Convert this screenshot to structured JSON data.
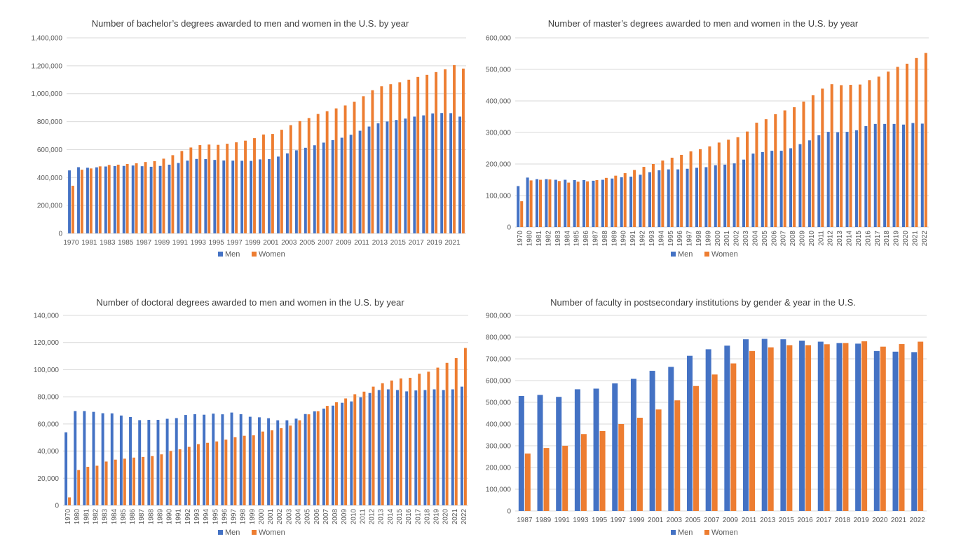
{
  "colors": {
    "men": "#4472C4",
    "women": "#ED7D31"
  },
  "chart_data": [
    {
      "type": "bar",
      "title": "Number of bachelor’s degrees awarded to men and women in the U.S. by year",
      "categories": [
        "1970",
        "1980",
        "1981",
        "1982",
        "1983",
        "1984",
        "1985",
        "1986",
        "1987",
        "1988",
        "1989",
        "1990",
        "1991",
        "1992",
        "1993",
        "1994",
        "1995",
        "1996",
        "1997",
        "1998",
        "1999",
        "2000",
        "2001",
        "2002",
        "2003",
        "2004",
        "2005",
        "2006",
        "2007",
        "2008",
        "2009",
        "2010",
        "2011",
        "2012",
        "2013",
        "2014",
        "2015",
        "2016",
        "2017",
        "2018",
        "2019",
        "2020",
        "2021",
        "2022"
      ],
      "series": [
        {
          "name": "Men",
          "values": [
            451000,
            474000,
            470000,
            473000,
            479000,
            482000,
            483000,
            486000,
            481000,
            477000,
            483000,
            492000,
            504000,
            521000,
            533000,
            532000,
            526000,
            522000,
            521000,
            520000,
            519000,
            530000,
            532000,
            550000,
            573000,
            595000,
            613000,
            631000,
            650000,
            668000,
            685000,
            706000,
            735000,
            765000,
            788000,
            801000,
            812000,
            822000,
            836000,
            845000,
            859000,
            862000,
            861000,
            836000
          ]
        },
        {
          "name": "Women",
          "values": [
            341000,
            456000,
            465000,
            480000,
            490000,
            492000,
            497000,
            502000,
            511000,
            517000,
            535000,
            560000,
            590000,
            615000,
            632000,
            636000,
            634000,
            642000,
            652000,
            664000,
            682000,
            708000,
            712000,
            742000,
            775000,
            804000,
            826000,
            855000,
            875000,
            895000,
            916000,
            943000,
            982000,
            1025000,
            1053000,
            1068000,
            1082000,
            1100000,
            1120000,
            1135000,
            1155000,
            1175000,
            1205000,
            1180000
          ]
        }
      ],
      "ylim": [
        0,
        1400000
      ],
      "ytick_step": 200000,
      "xlabel_every": 2,
      "grid": true,
      "legend": "bottom"
    },
    {
      "type": "bar",
      "title": "Number of master’s degrees awarded to men and women in the U.S. by year",
      "categories": [
        "1970",
        "1980",
        "1981",
        "1982",
        "1983",
        "1984",
        "1985",
        "1986",
        "1987",
        "1988",
        "1989",
        "1990",
        "1991",
        "1992",
        "1993",
        "1994",
        "1995",
        "1996",
        "1997",
        "1998",
        "1999",
        "2000",
        "2001",
        "2002",
        "2003",
        "2004",
        "2005",
        "2006",
        "2007",
        "2008",
        "2009",
        "2010",
        "2011",
        "2012",
        "2013",
        "2014",
        "2015",
        "2016",
        "2017",
        "2018",
        "2019",
        "2020",
        "2021",
        "2022"
      ],
      "series": [
        {
          "name": "Men",
          "values": [
            130000,
            157000,
            152000,
            152000,
            150000,
            150000,
            149000,
            149000,
            147000,
            150000,
            154000,
            158000,
            160000,
            166000,
            174000,
            180000,
            183000,
            183000,
            185000,
            188000,
            190000,
            196000,
            198000,
            202000,
            214000,
            233000,
            238000,
            242000,
            242000,
            250000,
            263000,
            275000,
            291000,
            302000,
            301000,
            302000,
            307000,
            320000,
            327000,
            327000,
            327000,
            325000,
            330000,
            328000
          ]
        },
        {
          "name": "Women",
          "values": [
            82000,
            148000,
            150000,
            151000,
            146000,
            141000,
            144000,
            145000,
            149000,
            156000,
            163000,
            171000,
            181000,
            191000,
            200000,
            211000,
            220000,
            229000,
            240000,
            247000,
            256000,
            268000,
            277000,
            285000,
            303000,
            331000,
            342000,
            358000,
            370000,
            380000,
            398000,
            418000,
            439000,
            453000,
            450000,
            451000,
            452000,
            466000,
            477000,
            493000,
            508000,
            518000,
            536000,
            552000
          ]
        }
      ],
      "ylim": [
        0,
        600000
      ],
      "ytick_step": 100000,
      "xlabel_every": 1,
      "grid": true,
      "legend": "bottom"
    },
    {
      "type": "bar",
      "title": "Number of doctoral degrees awarded to men and women in the U.S. by year",
      "categories": [
        "1970",
        "1980",
        "1981",
        "1982",
        "1983",
        "1984",
        "1985",
        "1986",
        "1987",
        "1988",
        "1989",
        "1990",
        "1991",
        "1992",
        "1993",
        "1994",
        "1995",
        "1996",
        "1997",
        "1998",
        "1999",
        "2000",
        "2001",
        "2002",
        "2003",
        "2004",
        "2005",
        "2006",
        "2007",
        "2008",
        "2009",
        "2010",
        "2011",
        "2012",
        "2013",
        "2014",
        "2015",
        "2016",
        "2017",
        "2018",
        "2019",
        "2020",
        "2021",
        "2022"
      ],
      "series": [
        {
          "name": "Men",
          "values": [
            53800,
            69500,
            69500,
            68900,
            67900,
            67800,
            66200,
            65100,
            62800,
            63000,
            63000,
            63800,
            64300,
            66600,
            67200,
            66800,
            67600,
            67100,
            68400,
            67200,
            65300,
            64900,
            64200,
            62700,
            62700,
            63900,
            67300,
            69300,
            71300,
            73500,
            75600,
            76600,
            79600,
            82800,
            85000,
            85500,
            85000,
            84000,
            84700,
            85000,
            85500,
            85000,
            85500,
            87500
          ]
        },
        {
          "name": "Women",
          "values": [
            5900,
            26000,
            28400,
            29200,
            32300,
            33700,
            34400,
            35200,
            35700,
            36300,
            37600,
            40100,
            41300,
            43100,
            45100,
            46100,
            47100,
            48400,
            50200,
            51300,
            51600,
            54400,
            55300,
            56900,
            58800,
            62700,
            67100,
            69400,
            73300,
            76000,
            78800,
            81900,
            83800,
            87500,
            90000,
            92000,
            93500,
            94000,
            97000,
            98500,
            101500,
            105000,
            108500,
            116000
          ]
        }
      ],
      "ylim": [
        0,
        140000
      ],
      "ytick_step": 20000,
      "xlabel_every": 1,
      "grid": true,
      "legend": "bottom"
    },
    {
      "type": "bar",
      "title": "Number of faculty in postsecondary institutions by gender & year in the U.S.",
      "categories": [
        "1987",
        "1989",
        "1991",
        "1993",
        "1995",
        "1997",
        "1999",
        "2001",
        "2003",
        "2005",
        "2007",
        "2009",
        "2011",
        "2013",
        "2015",
        "2016",
        "2017",
        "2018",
        "2019",
        "2020",
        "2021",
        "2022"
      ],
      "series": [
        {
          "name": "Men",
          "values": [
            529000,
            534000,
            525000,
            560000,
            563000,
            587000,
            608000,
            645000,
            663000,
            714000,
            744000,
            761000,
            790000,
            792000,
            790000,
            784000,
            779000,
            773000,
            770000,
            736000,
            733000,
            731000
          ]
        },
        {
          "name": "Women",
          "values": [
            264000,
            290000,
            300000,
            354000,
            368000,
            400000,
            429000,
            467000,
            509000,
            575000,
            628000,
            679000,
            736000,
            753000,
            763000,
            763000,
            767000,
            773000,
            781000,
            756000,
            768000,
            779000
          ]
        }
      ],
      "ylim": [
        0,
        900000
      ],
      "ytick_step": 100000,
      "xlabel_every": 1,
      "grid": true,
      "legend": "bottom"
    }
  ]
}
